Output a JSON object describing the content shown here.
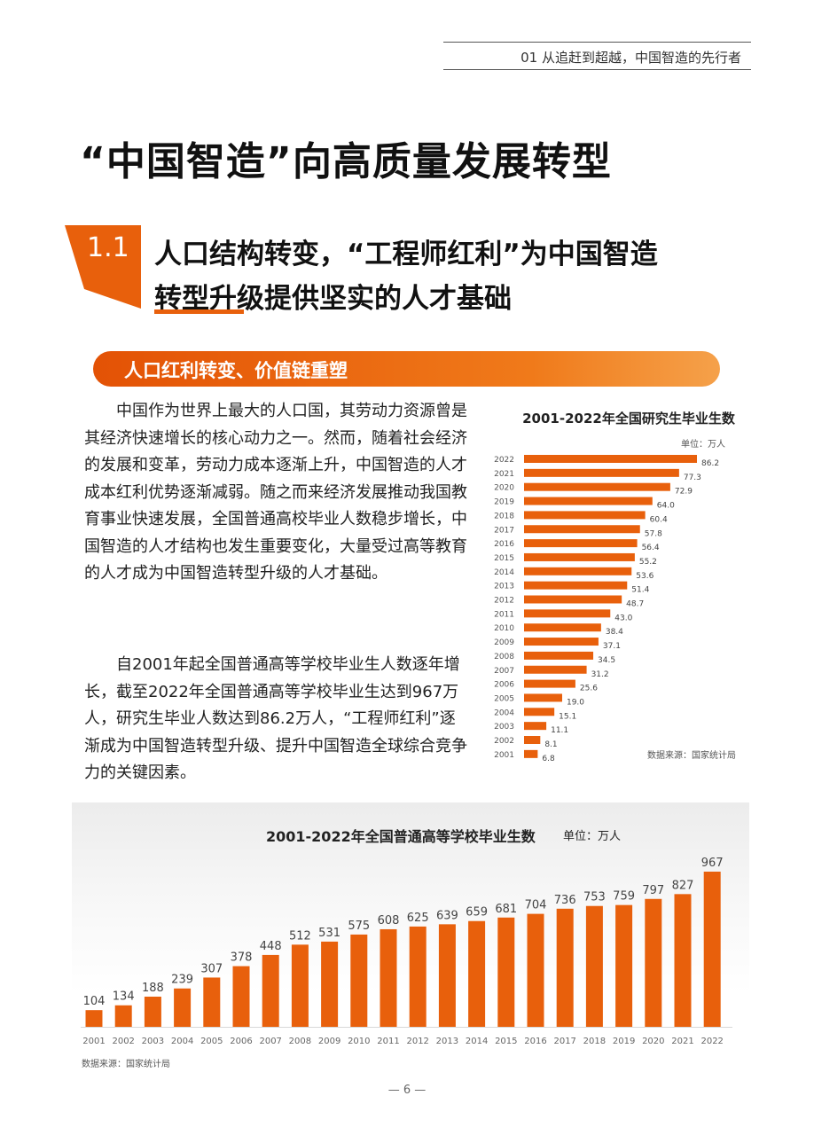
{
  "header": {
    "running_title": "01 从追赶到超越，中国智造的先行者"
  },
  "main_title": "“中国智造”向高质量发展转型",
  "section": {
    "number": "1.1",
    "title_line1": "人口结构转变，“工程师红利”为中国智造",
    "title_line2": "转型升级提供坚实的人才基础"
  },
  "banner": {
    "text": "人口红利转变、价值链重塑"
  },
  "paragraphs": [
    "中国作为世界上最大的人口国，其劳动力资源曾是其经济快速增长的核心动力之一。然而，随着社会经济的发展和变革，劳动力成本逐渐上升，中国智造的人才成本红利优势逐渐减弱。随之而来经济发展推动我国教育事业快速发展，全国普通高校毕业人数稳步增长，中国智造的人才结构也发生重要变化，大量受过高等教育的人才成为中国智造转型升级的人才基础。",
    "自2001年起全国普通高等学校毕业生人数逐年增长，截至2022年全国普通高等学校毕业生达到967万人，研究生毕业人数达到86.2万人，“工程师红利”逐渐成为中国智造转型升级、提升中国智造全球综合竞争力的关键因素。"
  ],
  "chart_data": [
    {
      "type": "bar",
      "orientation": "horizontal",
      "title": "2001-2022年全国研究生毕业生数",
      "unit": "单位：万人",
      "source": "数据来源：国家统计局",
      "categories": [
        "2022",
        "2021",
        "2020",
        "2019",
        "2018",
        "2017",
        "2016",
        "2015",
        "2014",
        "2013",
        "2012",
        "2011",
        "2010",
        "2009",
        "2008",
        "2007",
        "2006",
        "2005",
        "2004",
        "2003",
        "2002",
        "2001"
      ],
      "values": [
        86.2,
        77.3,
        72.9,
        64.0,
        60.4,
        57.8,
        56.4,
        55.2,
        53.6,
        51.4,
        48.7,
        43.0,
        38.4,
        37.1,
        34.5,
        31.2,
        25.6,
        19.0,
        15.1,
        11.1,
        8.1,
        6.8
      ],
      "labels": [
        "86.2",
        "77.3",
        "72.9",
        "64.0",
        "60.4",
        "57.8",
        "56.4",
        "55.2",
        "53.6",
        "51.4",
        "48.7",
        "43.0",
        "38.4",
        "37.1",
        "34.5",
        "31.2",
        "25.6",
        "19.0",
        "15.1",
        "11.1",
        "8.1",
        "6.8"
      ],
      "color": "#e8600c"
    },
    {
      "type": "bar",
      "orientation": "vertical",
      "title": "2001-2022年全国普通高等学校毕业生数",
      "unit": "单位：万人",
      "source": "数据来源：国家统计局",
      "categories": [
        "2001",
        "2002",
        "2003",
        "2004",
        "2005",
        "2006",
        "2007",
        "2008",
        "2009",
        "2010",
        "2011",
        "2012",
        "2013",
        "2014",
        "2015",
        "2016",
        "2017",
        "2018",
        "2019",
        "2020",
        "2021",
        "2022"
      ],
      "values": [
        104,
        134,
        188,
        239,
        307,
        378,
        448,
        512,
        531,
        575,
        608,
        625,
        639,
        659,
        681,
        704,
        736,
        753,
        759,
        797,
        827,
        967
      ],
      "color": "#e8600c"
    }
  ],
  "page_number": "— 6 —"
}
